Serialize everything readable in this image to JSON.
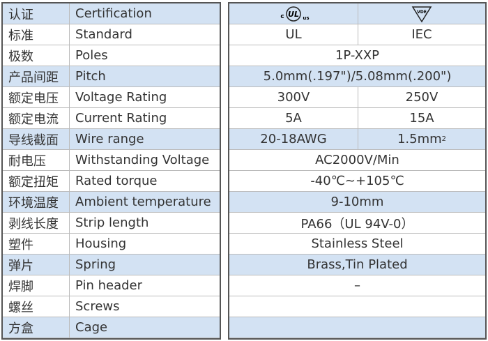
{
  "left": {
    "rows": [
      [
        "认证",
        "Certification"
      ],
      [
        "标准",
        "Standard"
      ],
      [
        "极数",
        "Poles"
      ],
      [
        "产品间距",
        "Pitch"
      ],
      [
        "额定电压",
        "Voltage Rating"
      ],
      [
        "额定电流",
        "Current Rating"
      ],
      [
        "导线截面",
        "Wire range"
      ],
      [
        "耐电压",
        "Withstanding Voltage"
      ],
      [
        "额定扭矩",
        "Rated torque"
      ],
      [
        "环境温度",
        "Ambient temperature"
      ],
      [
        "剥线长度",
        "Strip length"
      ],
      [
        "塑件",
        "Housing"
      ],
      [
        "弹片",
        "Spring"
      ],
      [
        "焊脚",
        "Pin header"
      ],
      [
        "螺丝",
        "Screws"
      ],
      [
        "方盒",
        "Cage"
      ]
    ]
  },
  "right": {
    "logos": {
      "ul": [
        "c",
        "UL",
        "us"
      ],
      "vde": "VDE"
    },
    "rows": [
      [],
      [
        "UL",
        "IEC"
      ],
      [
        "1P-XXP"
      ],
      [
        "5.0mm(.197\")/5.08mm(.200\")"
      ],
      [
        "300V",
        "250V"
      ],
      [
        "5A",
        "15A"
      ],
      [
        "20-18AWG",
        {
          "text": "1.5mm",
          "sup": "2"
        }
      ],
      [
        "AC2000V/Min"
      ],
      [
        "-40℃~+105℃"
      ],
      [
        "9-10mm"
      ],
      [
        "PA66（UL 94V-0）"
      ],
      [
        "Stainless Steel"
      ],
      [
        "Brass,Tin Plated"
      ],
      [
        "–"
      ],
      [],
      []
    ]
  }
}
